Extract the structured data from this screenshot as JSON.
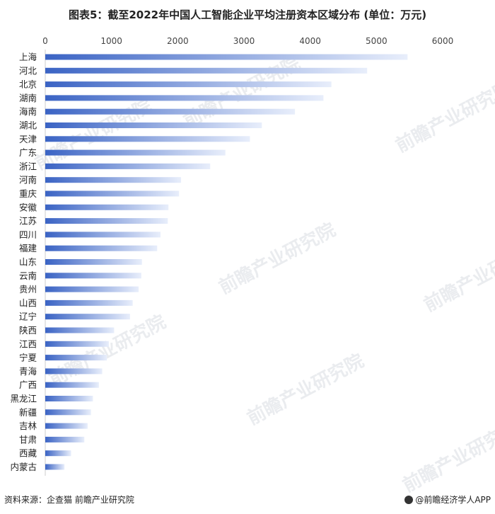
{
  "title": "图表5：截至2022年中国人工智能企业平均注册资本区域分布 (单位：万元)",
  "source": "资料来源：企查猫 前瞻产业研究院",
  "brand": "@前瞻经济学人APP",
  "watermark": "前瞻产业研究院",
  "colors": {
    "bar_dark": "#3a63c4",
    "bar_light": "#e8eefb",
    "axis": "#cccccc"
  },
  "chart_data": {
    "type": "bar",
    "orientation": "horizontal",
    "title": "图表5：截至2022年中国人工智能企业平均注册资本区域分布 (单位：万元)",
    "xlim": [
      0,
      6000
    ],
    "xticks": [
      0,
      1000,
      2000,
      3000,
      4000,
      5000,
      6000
    ],
    "x_axis_position": "top",
    "grid": false,
    "categories": [
      "上海",
      "河北",
      "北京",
      "湖南",
      "海南",
      "湖北",
      "天津",
      "广东",
      "浙江",
      "河南",
      "重庆",
      "安徽",
      "江苏",
      "四川",
      "福建",
      "山东",
      "云南",
      "贵州",
      "山西",
      "辽宁",
      "陕西",
      "江西",
      "宁夏",
      "青海",
      "广西",
      "黑龙江",
      "新疆",
      "吉林",
      "甘肃",
      "西藏",
      "内蒙古"
    ],
    "values": [
      5470,
      4860,
      4320,
      4200,
      3770,
      3270,
      3090,
      2720,
      2490,
      2050,
      2020,
      1860,
      1850,
      1740,
      1690,
      1460,
      1450,
      1410,
      1320,
      1280,
      1040,
      960,
      930,
      860,
      810,
      720,
      690,
      640,
      590,
      390,
      290
    ]
  }
}
